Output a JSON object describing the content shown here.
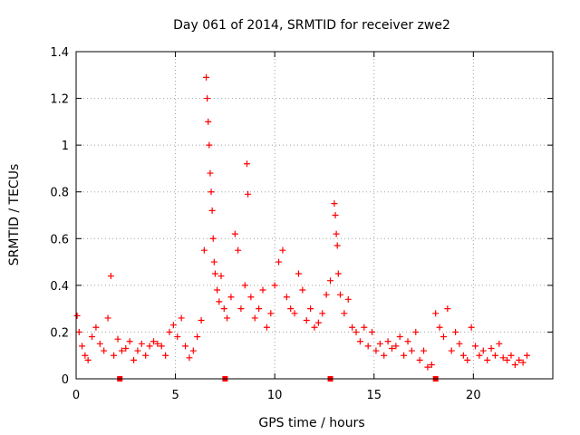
{
  "chart_data": {
    "type": "scatter",
    "title": "Day 061 of 2014, SRMTID for receiver zwe2",
    "xlabel": "GPS time / hours",
    "ylabel": "SRMTID / TECUs",
    "xlim": [
      0,
      24
    ],
    "ylim": [
      0,
      1.4
    ],
    "xticks": [
      "0",
      "5",
      "10",
      "15",
      "20"
    ],
    "yticks": [
      "0",
      "0.2",
      "0.4",
      "0.6",
      "0.8",
      "1",
      "1.2",
      "1.4"
    ],
    "grid": true,
    "marker": "+",
    "series": [
      {
        "name": "SRMTID",
        "color": "#ff0000",
        "x": [
          0.05,
          0.15,
          0.3,
          0.45,
          0.6,
          0.8,
          1.0,
          1.2,
          1.4,
          1.6,
          1.75,
          1.9,
          2.1,
          2.3,
          2.5,
          2.7,
          2.9,
          3.1,
          3.3,
          3.5,
          3.7,
          3.9,
          4.1,
          4.3,
          4.5,
          4.7,
          4.9,
          5.1,
          5.3,
          5.5,
          5.7,
          5.9,
          6.1,
          6.3,
          6.45,
          6.55,
          6.6,
          6.65,
          6.7,
          6.75,
          6.8,
          6.85,
          6.9,
          6.95,
          7.0,
          7.1,
          7.2,
          7.3,
          7.45,
          7.6,
          7.8,
          8.0,
          8.15,
          8.3,
          8.5,
          8.6,
          8.65,
          8.8,
          9.0,
          9.2,
          9.4,
          9.6,
          9.8,
          10.0,
          10.2,
          10.4,
          10.6,
          10.8,
          11.0,
          11.2,
          11.4,
          11.6,
          11.8,
          12.0,
          12.2,
          12.4,
          12.6,
          12.8,
          13.0,
          13.05,
          13.1,
          13.15,
          13.2,
          13.3,
          13.5,
          13.7,
          13.9,
          14.1,
          14.3,
          14.5,
          14.7,
          14.9,
          15.1,
          15.3,
          15.5,
          15.7,
          15.9,
          16.1,
          16.3,
          16.5,
          16.7,
          16.9,
          17.1,
          17.3,
          17.5,
          17.7,
          17.9,
          18.1,
          18.3,
          18.5,
          18.7,
          18.9,
          19.1,
          19.3,
          19.5,
          19.7,
          19.9,
          20.1,
          20.3,
          20.5,
          20.7,
          20.9,
          21.1,
          21.3,
          21.5,
          21.7,
          21.9,
          22.1,
          22.3,
          22.5,
          22.7
        ],
        "y": [
          0.27,
          0.2,
          0.14,
          0.1,
          0.08,
          0.18,
          0.22,
          0.15,
          0.12,
          0.26,
          0.44,
          0.1,
          0.17,
          0.12,
          0.13,
          0.16,
          0.08,
          0.12,
          0.15,
          0.1,
          0.14,
          0.16,
          0.15,
          0.14,
          0.1,
          0.2,
          0.23,
          0.18,
          0.26,
          0.14,
          0.09,
          0.12,
          0.18,
          0.25,
          0.55,
          1.29,
          1.2,
          1.1,
          1.0,
          0.88,
          0.8,
          0.72,
          0.6,
          0.5,
          0.45,
          0.38,
          0.33,
          0.44,
          0.3,
          0.26,
          0.35,
          0.62,
          0.55,
          0.3,
          0.4,
          0.92,
          0.79,
          0.35,
          0.26,
          0.3,
          0.38,
          0.22,
          0.28,
          0.4,
          0.5,
          0.55,
          0.35,
          0.3,
          0.28,
          0.45,
          0.38,
          0.25,
          0.3,
          0.22,
          0.24,
          0.28,
          0.36,
          0.42,
          0.75,
          0.7,
          0.62,
          0.57,
          0.45,
          0.36,
          0.28,
          0.34,
          0.22,
          0.2,
          0.16,
          0.22,
          0.14,
          0.2,
          0.12,
          0.15,
          0.1,
          0.16,
          0.13,
          0.14,
          0.18,
          0.1,
          0.16,
          0.12,
          0.2,
          0.08,
          0.12,
          0.05,
          0.06,
          0.28,
          0.22,
          0.18,
          0.3,
          0.12,
          0.2,
          0.15,
          0.1,
          0.08,
          0.22,
          0.14,
          0.1,
          0.12,
          0.08,
          0.13,
          0.1,
          0.15,
          0.09,
          0.08,
          0.1,
          0.06,
          0.08,
          0.07,
          0.1
        ]
      }
    ],
    "xaxis_markers": [
      2.2,
      7.5,
      12.8,
      18.1
    ]
  }
}
